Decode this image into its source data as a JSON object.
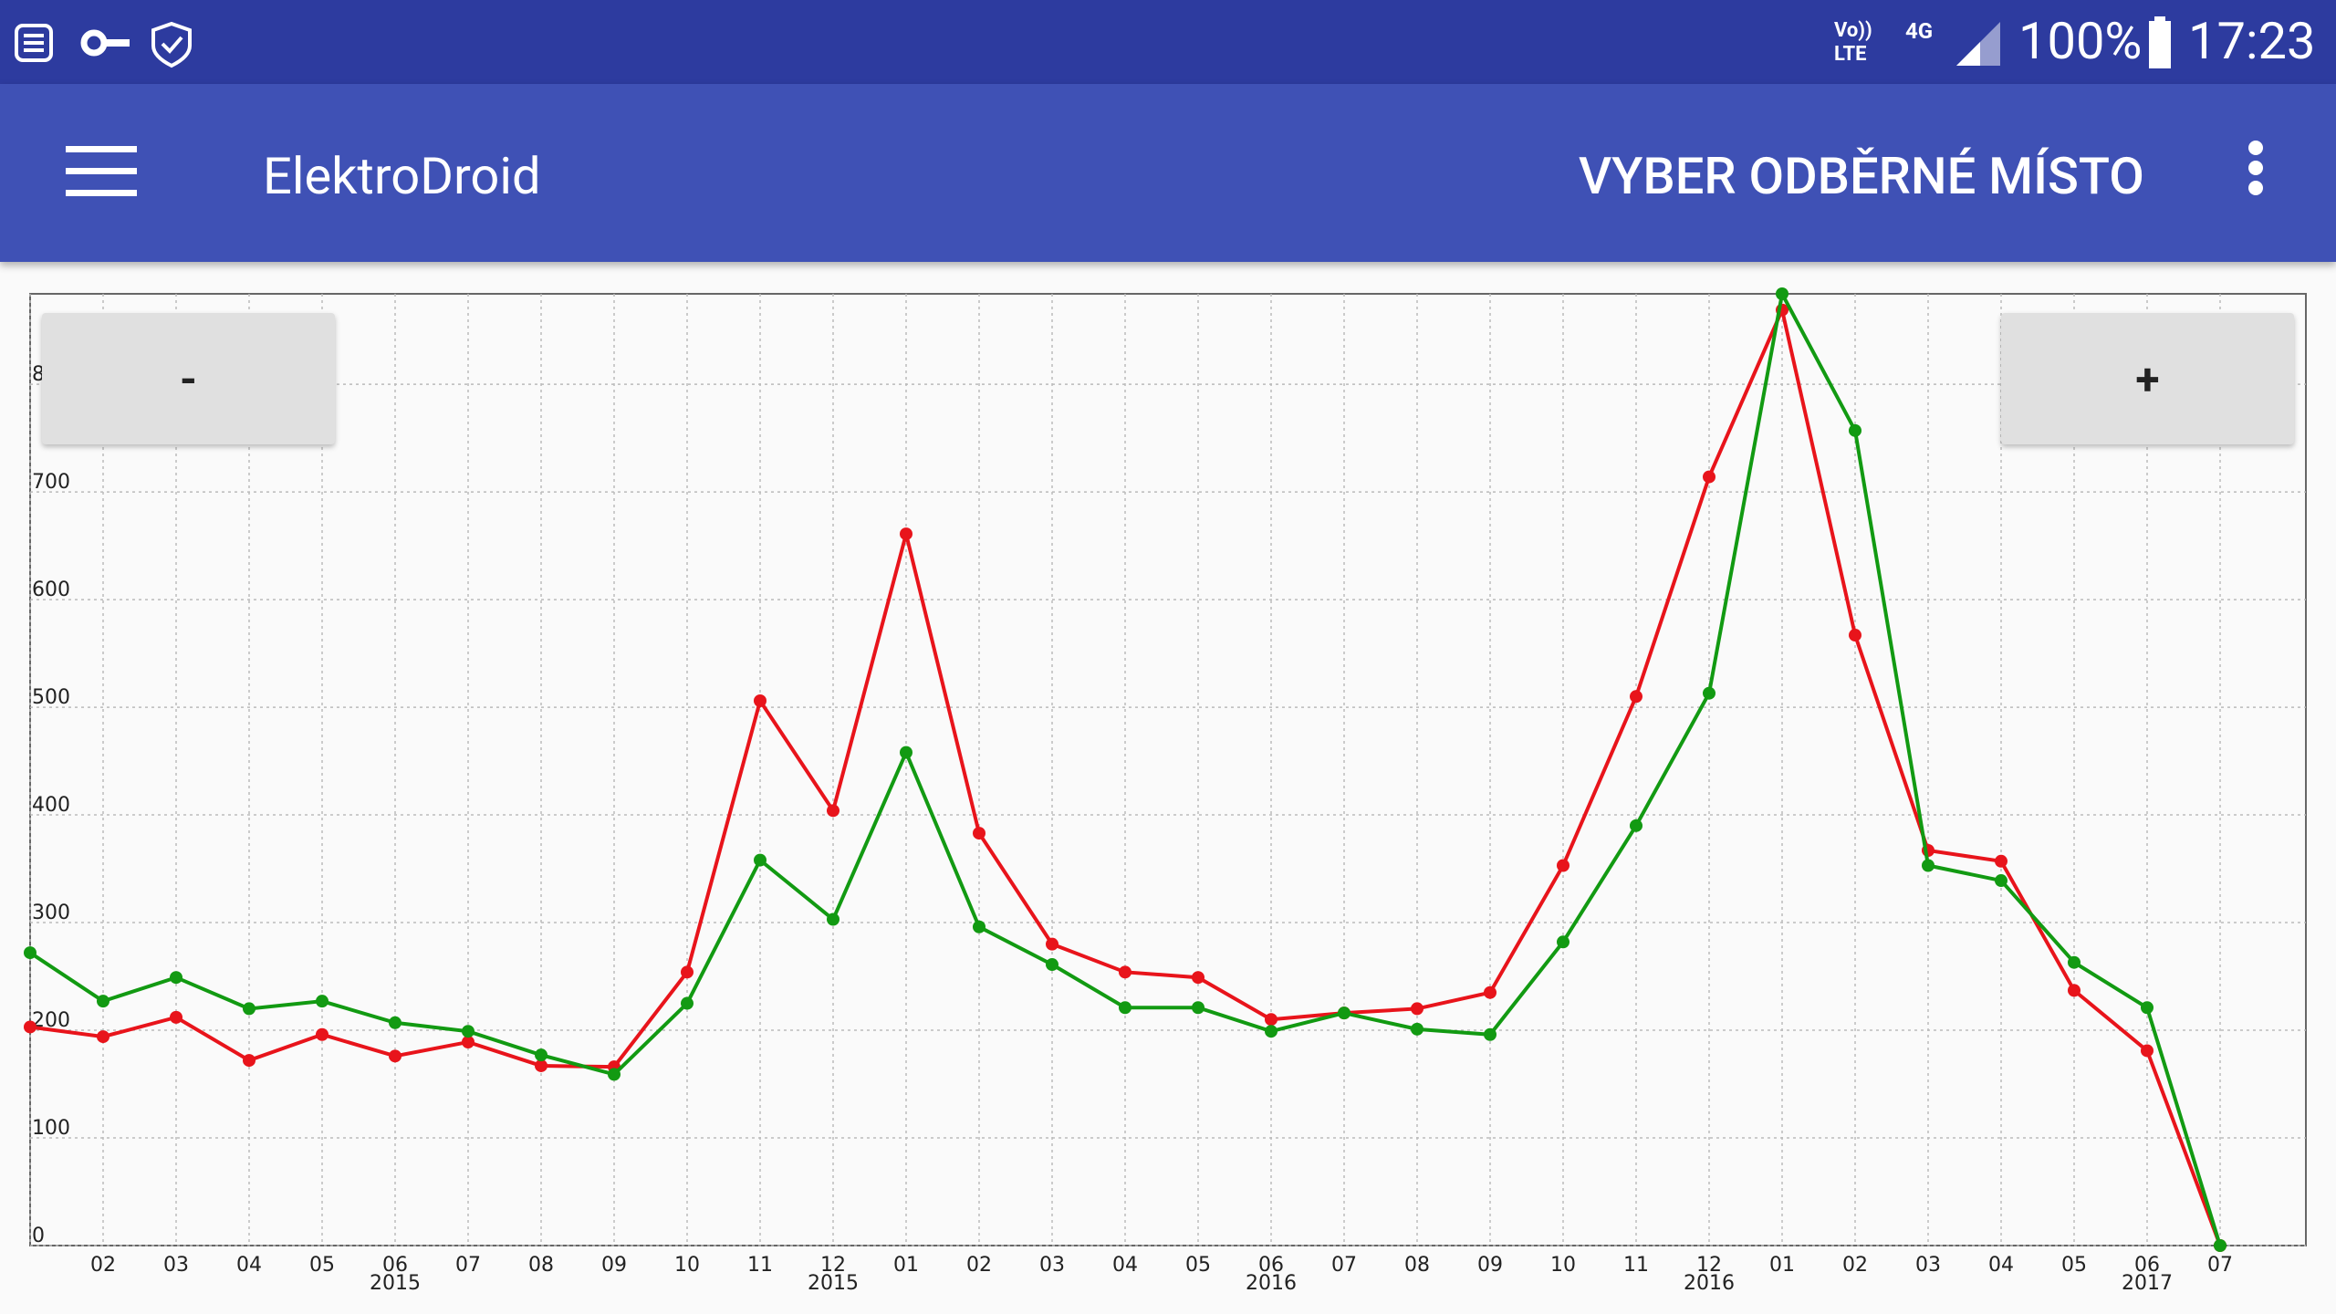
{
  "status_bar": {
    "volte": "Vo))",
    "lte": "LTE",
    "network": "4G",
    "battery": "100%",
    "time": "17:23"
  },
  "app_bar": {
    "title": "ElektroDroid",
    "action": "VYBER ODBĚRNÉ MÍSTO"
  },
  "zoom_buttons": {
    "zoom_out": "-",
    "zoom_in": "+"
  },
  "chart_data": {
    "type": "line",
    "categories": [
      null,
      "02",
      "03",
      "04",
      "05",
      "06",
      "07",
      "08",
      "09",
      "10",
      "11",
      "12",
      "01",
      "02",
      "03",
      "04",
      "05",
      "06",
      "07",
      "08",
      "09",
      "10",
      "11",
      "12",
      "01",
      "02",
      "03",
      "04",
      "05",
      "06",
      "07"
    ],
    "year_labels": [
      null,
      null,
      null,
      null,
      null,
      "2015",
      null,
      null,
      null,
      null,
      null,
      "2015",
      null,
      null,
      null,
      null,
      null,
      "2016",
      null,
      null,
      null,
      null,
      null,
      "2016",
      null,
      null,
      null,
      null,
      null,
      "2017",
      null
    ],
    "series": [
      {
        "color": "#e8141b",
        "values": [
          203,
          194,
          212,
          172,
          196,
          176,
          189,
          167,
          166,
          254,
          506,
          404,
          661,
          383,
          280,
          254,
          249,
          210,
          216,
          220,
          235,
          353,
          510,
          714,
          869,
          567,
          367,
          357,
          237,
          181,
          0
        ]
      },
      {
        "color": "#129a12",
        "values": [
          272,
          227,
          249,
          220,
          227,
          207,
          199,
          177,
          159,
          225,
          358,
          303,
          458,
          296,
          261,
          221,
          221,
          199,
          216,
          201,
          196,
          282,
          390,
          513,
          884,
          757,
          353,
          339,
          263,
          221,
          0
        ]
      }
    ],
    "ylim": [
      0,
      884
    ],
    "yticks": [
      0,
      100,
      200,
      300,
      400,
      500,
      600,
      700,
      {
        "value": 800,
        "label": "8"
      }
    ],
    "grid": true
  }
}
